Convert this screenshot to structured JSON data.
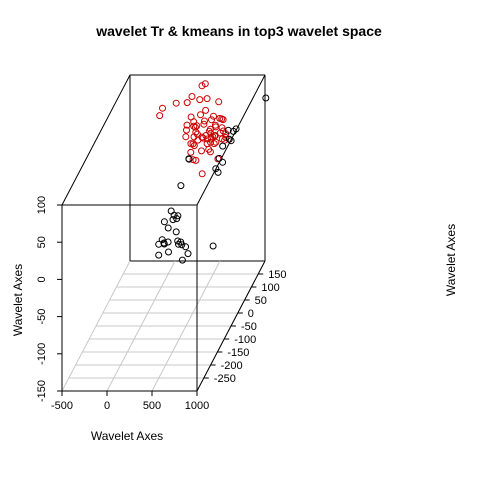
{
  "chart_data": {
    "type": "scatter",
    "title": "wavelet Tr & kmeans in top3 wavelet space",
    "xlabel": "Wavelet Axes",
    "ylabel": "Wavelet Axes",
    "zlabel": "Wavelet Axes",
    "xlim": [
      -500,
      1000
    ],
    "ylim": [
      -300,
      200
    ],
    "zlim": [
      -150,
      100
    ],
    "x_ticks": [
      "-500",
      "0",
      "500",
      "1000"
    ],
    "y_ticks": [
      "-250",
      "-200",
      "-150",
      "-100",
      "-50",
      "0",
      "50",
      "100",
      "150"
    ],
    "z_ticks": [
      "-150",
      "-100",
      "-50",
      "0",
      "50",
      "100"
    ],
    "grid": true,
    "series": [
      {
        "color": "#cc0000",
        "points": [
          [
            -60,
            127,
            71
          ],
          [
            -20,
            121,
            83
          ],
          [
            100,
            143,
            82
          ],
          [
            240,
            131,
            87
          ],
          [
            260,
            116,
            62
          ],
          [
            262,
            111,
            57
          ],
          [
            270,
            146,
            90
          ],
          [
            285,
            91,
            55
          ],
          [
            285,
            130,
            68
          ],
          [
            320,
            105,
            41
          ],
          [
            320,
            126,
            63
          ],
          [
            330,
            120,
            59
          ],
          [
            340,
            91,
            34
          ],
          [
            340,
            125,
            56
          ],
          [
            345,
            154,
            83
          ],
          [
            345,
            170,
            96
          ],
          [
            350,
            101,
            42
          ],
          [
            350,
            108,
            49
          ],
          [
            360,
            115,
            53
          ],
          [
            360,
            122,
            59
          ],
          [
            365,
            100,
            40
          ],
          [
            375,
            175,
            97
          ],
          [
            375,
            139,
            68
          ],
          [
            378,
            83,
            27
          ],
          [
            380,
            113,
            51
          ],
          [
            395,
            107,
            45
          ],
          [
            405,
            86,
            25
          ],
          [
            420,
            158,
            83
          ],
          [
            425,
            144,
            72
          ],
          [
            430,
            132,
            62
          ],
          [
            430,
            113,
            47
          ],
          [
            430,
            128,
            59
          ],
          [
            445,
            112,
            46
          ],
          [
            450,
            97,
            34
          ],
          [
            470,
            116,
            48
          ],
          [
            490,
            114,
            44
          ],
          [
            500,
            69,
            13
          ],
          [
            500,
            105,
            41
          ],
          [
            500,
            121,
            52
          ],
          [
            505,
            134,
            63
          ],
          [
            510,
            123,
            54
          ],
          [
            520,
            119,
            50
          ],
          [
            520,
            139,
            66
          ],
          [
            525,
            100,
            35
          ],
          [
            535,
            107,
            42
          ],
          [
            535,
            112,
            46
          ],
          [
            550,
            114,
            47
          ],
          [
            550,
            157,
            79
          ],
          [
            550,
            96,
            33
          ],
          [
            555,
            130,
            57
          ],
          [
            560,
            129,
            55
          ],
          [
            565,
            117,
            47
          ],
          [
            570,
            119,
            47
          ],
          [
            575,
            108,
            40
          ],
          [
            590,
            110,
            41
          ],
          [
            590,
            139,
            63
          ],
          [
            610,
            140,
            62
          ],
          [
            620,
            123,
            49
          ],
          [
            625,
            140,
            61
          ],
          [
            630,
            129,
            54
          ],
          [
            640,
            92,
            25
          ],
          [
            650,
            117,
            43
          ],
          [
            650,
            125,
            51
          ],
          [
            680,
            123,
            48
          ],
          [
            680,
            115,
            42
          ],
          [
            690,
            117,
            45
          ]
        ]
      },
      {
        "color": "#000000",
        "points": [
          [
            150,
            -19,
            -51
          ],
          [
            165,
            -29,
            -62
          ],
          [
            165,
            13,
            -32
          ],
          [
            180,
            -13,
            -47
          ],
          [
            200,
            -14,
            -51
          ],
          [
            210,
            -18,
            -51
          ],
          [
            225,
            23,
            -21
          ],
          [
            230,
            -2,
            -35
          ],
          [
            250,
            -16,
            -49
          ],
          [
            260,
            13,
            -29
          ],
          [
            260,
            -20,
            -61
          ],
          [
            265,
            18,
            -25
          ],
          [
            285,
            55,
            2
          ],
          [
            295,
            17,
            -29
          ],
          [
            310,
            16,
            -25
          ],
          [
            320,
            -3,
            -40
          ],
          [
            325,
            88,
            26
          ],
          [
            325,
            87,
            27
          ],
          [
            355,
            -15,
            -48
          ],
          [
            370,
            -19,
            -51
          ],
          [
            390,
            -16,
            -49
          ],
          [
            405,
            -18,
            -52
          ],
          [
            440,
            -37,
            -66
          ],
          [
            450,
            -20,
            -54
          ],
          [
            490,
            -29,
            -60
          ],
          [
            600,
            103,
            8
          ],
          [
            620,
            114,
            18
          ],
          [
            630,
            100,
            4
          ],
          [
            640,
            127,
            30
          ],
          [
            660,
            113,
            13
          ],
          [
            680,
            142,
            46
          ],
          [
            700,
            136,
            36
          ],
          [
            720,
            136,
            34
          ],
          [
            725,
            0,
            -60
          ],
          [
            730,
            146,
            43
          ],
          [
            755,
            150,
            45
          ],
          [
            1000,
            206,
            67
          ]
        ]
      }
    ]
  }
}
